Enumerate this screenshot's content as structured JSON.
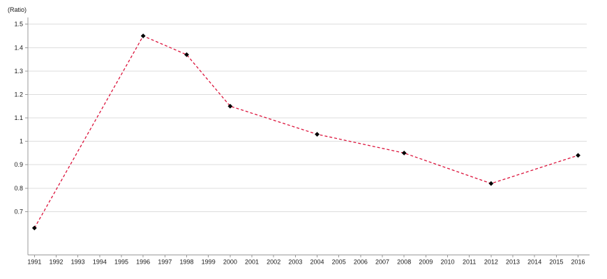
{
  "chart_data": {
    "type": "line",
    "title": "",
    "xlabel": "",
    "ylabel": "(Ratio)",
    "series": [
      {
        "name": "Ratio",
        "x": [
          1991,
          1996,
          1998,
          2000,
          2004,
          2008,
          2012,
          2016
        ],
        "y": [
          0.63,
          1.45,
          1.37,
          1.15,
          1.03,
          0.95,
          0.82,
          0.94
        ],
        "line_style": "dashed",
        "line_color": "#dc143c",
        "marker": "diamond",
        "marker_color": "#000000"
      }
    ],
    "xticks": [
      1991,
      1992,
      1993,
      1994,
      1995,
      1996,
      1997,
      1998,
      1999,
      2000,
      2001,
      2002,
      2003,
      2004,
      2005,
      2006,
      2007,
      2008,
      2009,
      2010,
      2011,
      2012,
      2013,
      2014,
      2015,
      2016
    ],
    "yticks": [
      0.7,
      0.8,
      0.9,
      1,
      1.1,
      1.2,
      1.3,
      1.4,
      1.5
    ],
    "ytick_labels": [
      "0.7",
      "0.8",
      "0.9",
      "1",
      "1.1",
      "1.2",
      "1.3",
      "1.4",
      "1.5"
    ],
    "xlim": [
      1990.7,
      2016.4
    ],
    "ylim": [
      0.515,
      1.5
    ],
    "grid": "horizontal",
    "legend": "none",
    "colors": {
      "gridline": "#dddddd",
      "axis": "#999999",
      "tick_text": "#1a1a1a",
      "background": "#ffffff"
    }
  }
}
